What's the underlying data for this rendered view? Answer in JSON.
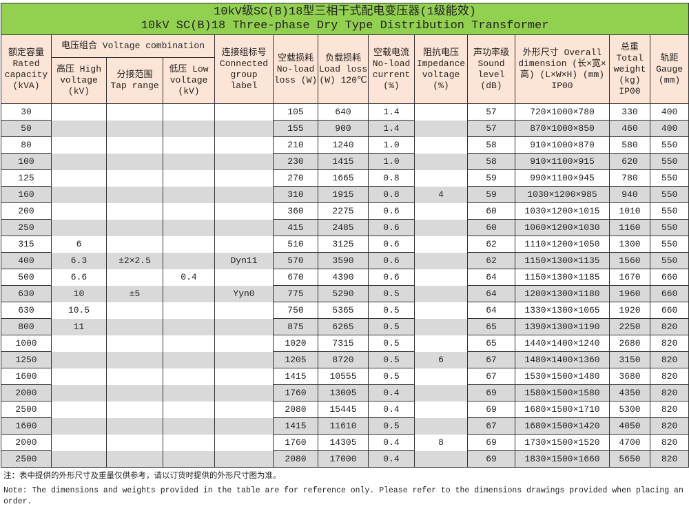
{
  "title": {
    "cn": "10kV级SC(B)18型三相干式配电变压器(1级能效)",
    "en": "10kV SC(B)18 Three-phase Dry Type Distribution Transformer"
  },
  "headers": {
    "rated_capacity": "额定容量 Rated capacity (kVA)",
    "voltage_combination": "电压组合 Voltage combination",
    "high_voltage": "高压 High voltage (kV)",
    "tap_range": "分接范围 Tap range",
    "low_voltage": "低压 Low voltage (kV)",
    "connected_group": "连接组标号 Connected group label",
    "no_load_loss": "空载损耗 No-load loss (W)",
    "load_loss": "负载损耗 Load loss (W) 120℃",
    "no_load_current": "空载电流 No-load current (%)",
    "impedance_voltage": "阻抗电压 Impedance voltage (%)",
    "sound_level": "声功率级 Sound level (dB)",
    "overall_dimension": "外形尺寸 Overall dimension (长×宽×高) (L×W×H) (mm) IP00",
    "total_weight": "总重 Total weight (kg) IP00",
    "gauge": "轨距 Gauge (mm)"
  },
  "rows": [
    [
      "30",
      "",
      "",
      "",
      "",
      "105",
      "640",
      "1.4",
      "",
      "57",
      "720×1000×780",
      "330",
      "400"
    ],
    [
      "50",
      "",
      "",
      "",
      "",
      "155",
      "900",
      "1.4",
      "",
      "57",
      "870×1000×850",
      "460",
      "400"
    ],
    [
      "80",
      "",
      "",
      "",
      "",
      "210",
      "1240",
      "1.0",
      "",
      "58",
      "910×1000×870",
      "580",
      "550"
    ],
    [
      "100",
      "",
      "",
      "",
      "",
      "230",
      "1415",
      "1.0",
      "",
      "58",
      "910×1100×915",
      "620",
      "550"
    ],
    [
      "125",
      "",
      "",
      "",
      "",
      "270",
      "1665",
      "0.8",
      "",
      "59",
      "990×1100×945",
      "780",
      "550"
    ],
    [
      "160",
      "",
      "",
      "",
      "",
      "310",
      "1915",
      "0.8",
      "4",
      "59",
      "1030×1200×985",
      "940",
      "550"
    ],
    [
      "200",
      "",
      "",
      "",
      "",
      "360",
      "2275",
      "0.6",
      "",
      "60",
      "1030×1200×1015",
      "1010",
      "550"
    ],
    [
      "250",
      "",
      "",
      "",
      "",
      "415",
      "2485",
      "0.6",
      "",
      "60",
      "1060×1200×1030",
      "1160",
      "550"
    ],
    [
      "315",
      "6",
      "",
      "",
      "",
      "510",
      "3125",
      "0.6",
      "",
      "62",
      "1110×1200×1050",
      "1300",
      "550"
    ],
    [
      "400",
      "6.3",
      "±2×2.5",
      "",
      "Dyn11",
      "570",
      "3590",
      "0.6",
      "",
      "62",
      "1150×1300×1135",
      "1560",
      "550"
    ],
    [
      "500",
      "6.6",
      "",
      "0.4",
      "",
      "670",
      "4390",
      "0.6",
      "",
      "64",
      "1150×1300×1185",
      "1670",
      "660"
    ],
    [
      "630",
      "10",
      "±5",
      "",
      "Yyn0",
      "775",
      "5290",
      "0.5",
      "",
      "64",
      "1200×1300×1180",
      "1960",
      "660"
    ],
    [
      "630",
      "10.5",
      "",
      "",
      "",
      "750",
      "5365",
      "0.5",
      "",
      "64",
      "1330×1300×1065",
      "1920",
      "660"
    ],
    [
      "800",
      "11",
      "",
      "",
      "",
      "875",
      "6265",
      "0.5",
      "",
      "65",
      "1390×1300×1190",
      "2250",
      "820"
    ],
    [
      "1000",
      "",
      "",
      "",
      "",
      "1020",
      "7315",
      "0.5",
      "",
      "65",
      "1440×1400×1240",
      "2680",
      "820"
    ],
    [
      "1250",
      "",
      "",
      "",
      "",
      "1205",
      "8720",
      "0.5",
      "6",
      "67",
      "1480×1400×1360",
      "3150",
      "820"
    ],
    [
      "1600",
      "",
      "",
      "",
      "",
      "1415",
      "10555",
      "0.5",
      "",
      "67",
      "1530×1500×1480",
      "3680",
      "820"
    ],
    [
      "2000",
      "",
      "",
      "",
      "",
      "1760",
      "13005",
      "0.4",
      "",
      "69",
      "1580×1500×1580",
      "4350",
      "820"
    ],
    [
      "2500",
      "",
      "",
      "",
      "",
      "2080",
      "15445",
      "0.4",
      "",
      "69",
      "1680×1500×1710",
      "5300",
      "820"
    ],
    [
      "1600",
      "",
      "",
      "",
      "",
      "1415",
      "11610",
      "0.5",
      "",
      "67",
      "1680×1500×1420",
      "4050",
      "820"
    ],
    [
      "2000",
      "",
      "",
      "",
      "",
      "1760",
      "14305",
      "0.4",
      "8",
      "69",
      "1730×1500×1520",
      "4700",
      "820"
    ],
    [
      "2500",
      "",
      "",
      "",
      "",
      "2080",
      "17000",
      "0.4",
      "",
      "69",
      "1830×1500×1660",
      "5650",
      "820"
    ]
  ],
  "notes": {
    "cn": "注：表中提供的外形尺寸及重量仅供参考，请以订货时提供的外形尺寸图为准。",
    "en": "Note: The dimensions and weights provided in the table are for reference only. Please refer to the dimensions drawings provided when placing an order."
  },
  "colors": {
    "title_bg": "#92d050",
    "header_bg": "#fce4d6",
    "stripe": "#d9d9d9"
  }
}
